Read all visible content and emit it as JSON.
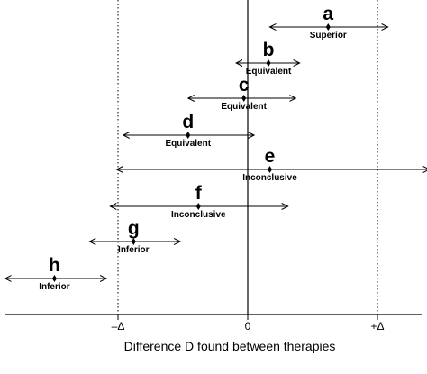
{
  "chart_data": {
    "type": "interval",
    "x_axis": {
      "title": "Difference D found between therapies",
      "ticks": [
        {
          "value": -1,
          "label": "–Δ"
        },
        {
          "value": 0,
          "label": "0"
        },
        {
          "value": 1,
          "label": "+Δ"
        }
      ],
      "range": [
        -1.9,
        1.4
      ]
    },
    "reference_lines": [
      {
        "value": -1,
        "style": "dotted"
      },
      {
        "value": 0,
        "style": "solid"
      },
      {
        "value": 1,
        "style": "dotted"
      }
    ],
    "intervals": [
      {
        "letter": "a",
        "verdict": "Superior",
        "estimate": 0.62,
        "lower": 0.17,
        "upper": 1.08
      },
      {
        "letter": "b",
        "verdict": "Equivalent",
        "estimate": 0.16,
        "lower": -0.09,
        "upper": 0.4
      },
      {
        "letter": "c",
        "verdict": "Equivalent",
        "estimate": -0.03,
        "lower": -0.46,
        "upper": 0.37
      },
      {
        "letter": "d",
        "verdict": "Equivalent",
        "estimate": -0.46,
        "lower": -0.96,
        "upper": 0.05
      },
      {
        "letter": "e",
        "verdict": "Inconclusive",
        "estimate": 0.17,
        "lower": -1.01,
        "upper": 1.4
      },
      {
        "letter": "f",
        "verdict": "Inconclusive",
        "estimate": -0.38,
        "lower": -1.06,
        "upper": 0.31
      },
      {
        "letter": "g",
        "verdict": "Inferior",
        "estimate": -0.88,
        "lower": -1.22,
        "upper": -0.52
      },
      {
        "letter": "h",
        "verdict": "Inferior",
        "estimate": -1.49,
        "lower": -1.87,
        "upper": -1.09
      }
    ]
  }
}
